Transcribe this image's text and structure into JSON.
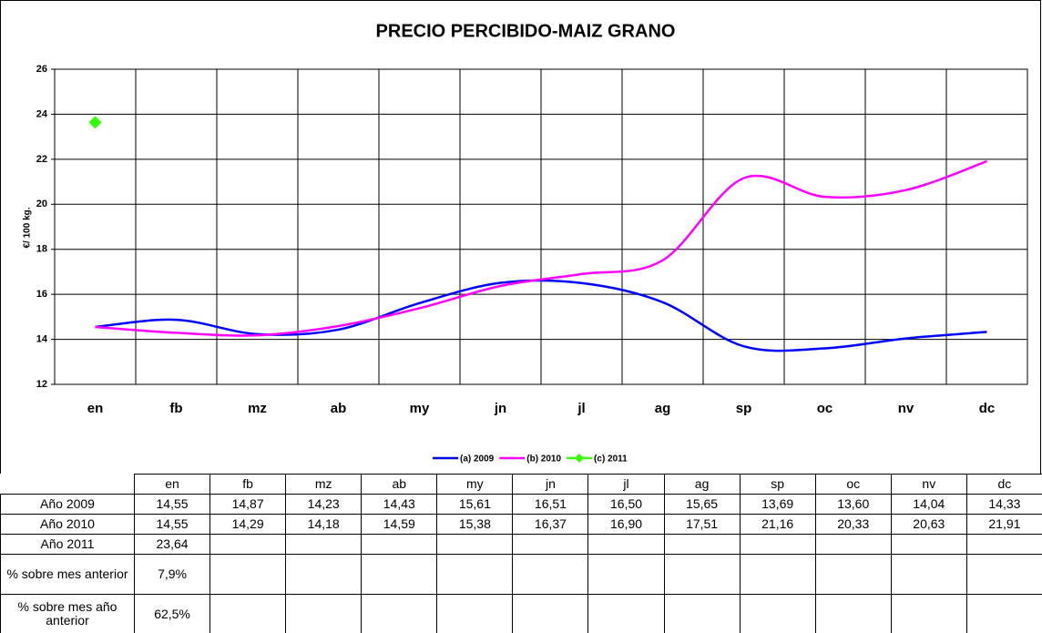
{
  "chart_data": {
    "type": "line",
    "title": "PRECIO PERCIBIDO-MAIZ GRANO",
    "y_label": "€/ 100 kg.",
    "categories": [
      "en",
      "fb",
      "mz",
      "ab",
      "my",
      "jn",
      "jl",
      "ag",
      "sp",
      "oc",
      "nv",
      "dc"
    ],
    "ylim": [
      12,
      26
    ],
    "yticks": [
      12,
      14,
      16,
      18,
      20,
      22,
      24,
      26
    ],
    "grid": true,
    "legend": "bottom",
    "series": [
      {
        "name": "(a) 2009",
        "row_label": "Año 2009",
        "color": "#0000ff",
        "smooth": true,
        "values": [
          14.55,
          14.87,
          14.23,
          14.43,
          15.61,
          16.51,
          16.5,
          15.65,
          13.69,
          13.6,
          14.04,
          14.33
        ],
        "value_labels": [
          "14,55",
          "14,87",
          "14,23",
          "14,43",
          "15,61",
          "16,51",
          "16,50",
          "15,65",
          "13,69",
          "13,60",
          "14,04",
          "14,33"
        ]
      },
      {
        "name": "(b) 2010",
        "row_label": "Año 2010",
        "color": "#ff00ff",
        "smooth": true,
        "values": [
          14.55,
          14.29,
          14.18,
          14.59,
          15.38,
          16.37,
          16.9,
          17.51,
          21.16,
          20.33,
          20.63,
          21.91
        ],
        "value_labels": [
          "14,55",
          "14,29",
          "14,18",
          "14,59",
          "15,38",
          "16,37",
          "16,90",
          "17,51",
          "21,16",
          "20,33",
          "20,63",
          "21,91"
        ]
      },
      {
        "name": "(c) 2011",
        "row_label": "Año 2011",
        "color": "#33ff00",
        "marker": "diamond",
        "values": [
          23.64,
          null,
          null,
          null,
          null,
          null,
          null,
          null,
          null,
          null,
          null,
          null
        ],
        "value_labels": [
          "23,64",
          null,
          null,
          null,
          null,
          null,
          null,
          null,
          null,
          null,
          null,
          null
        ]
      }
    ],
    "extra_rows": [
      {
        "label": "% sobre mes anterior",
        "values": [
          7.9,
          null,
          null,
          null,
          null,
          null,
          null,
          null,
          null,
          null,
          null,
          null
        ],
        "value_labels": [
          "7,9%",
          null,
          null,
          null,
          null,
          null,
          null,
          null,
          null,
          null,
          null,
          null
        ]
      },
      {
        "label": "% sobre mes año anterior",
        "values": [
          62.5,
          null,
          null,
          null,
          null,
          null,
          null,
          null,
          null,
          null,
          null,
          null
        ],
        "value_labels": [
          "62,5%",
          null,
          null,
          null,
          null,
          null,
          null,
          null,
          null,
          null,
          null,
          null
        ]
      }
    ]
  }
}
